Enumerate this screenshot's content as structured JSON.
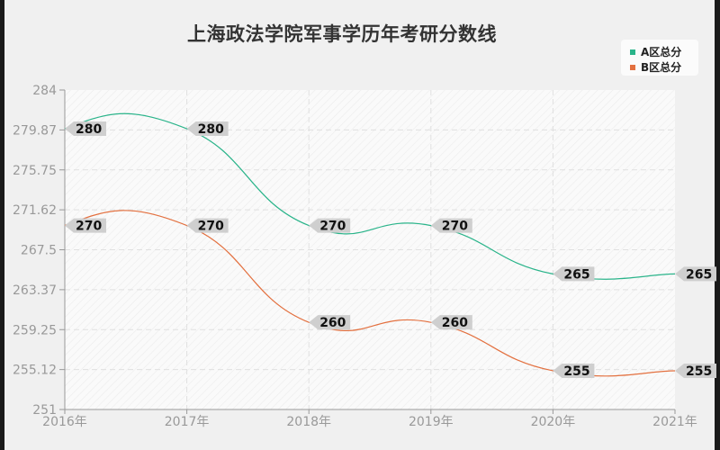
{
  "title": "上海政法学院军事学历年考研分数线",
  "legend": [
    {
      "label": "A区总分",
      "color": "#2ab48a"
    },
    {
      "label": "B区总分",
      "color": "#e3703f"
    }
  ],
  "chart_data": {
    "type": "line",
    "title": "上海政法学院军事学历年考研分数线",
    "xlabel": "",
    "ylabel": "",
    "categories": [
      "2016年",
      "2017年",
      "2018年",
      "2019年",
      "2020年",
      "2021年"
    ],
    "series": [
      {
        "name": "A区总分",
        "values": [
          280,
          280,
          270,
          270,
          265,
          265
        ],
        "color": "#2ab48a"
      },
      {
        "name": "B区总分",
        "values": [
          270,
          270,
          260,
          260,
          255,
          255
        ],
        "color": "#e3703f"
      }
    ],
    "ylim": [
      251,
      284
    ],
    "yticks": [
      "284",
      "279.87",
      "275.75",
      "271.62",
      "267.5",
      "263.37",
      "259.25",
      "255.12",
      "251"
    ],
    "grid": true,
    "legend_position": "top-right",
    "smooth": true
  }
}
